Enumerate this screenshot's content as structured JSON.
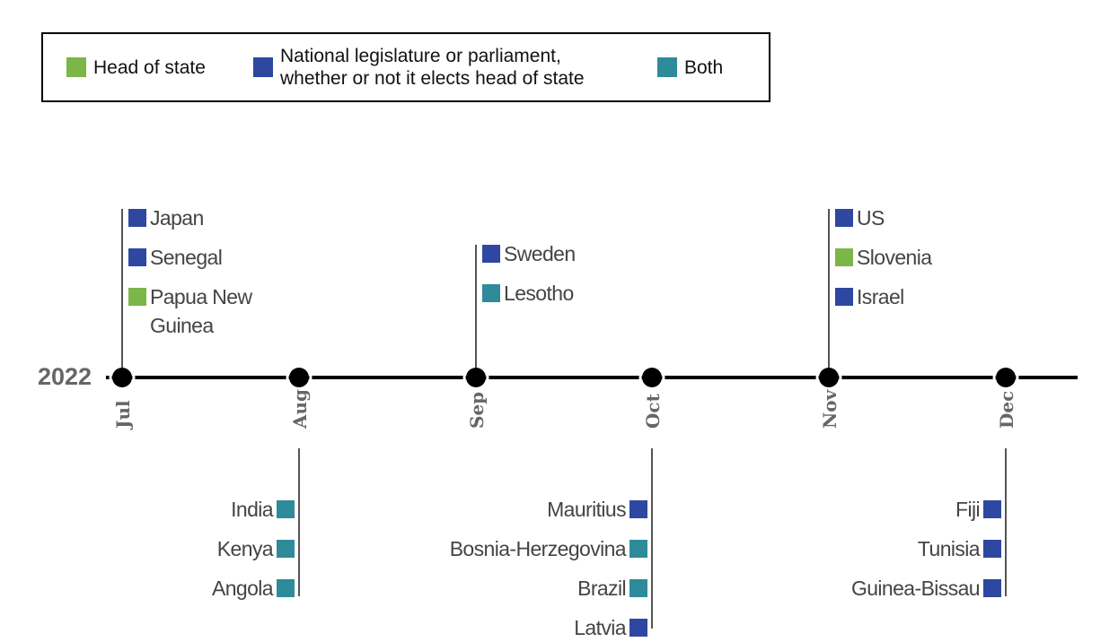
{
  "legend": [
    {
      "label": "Head of state",
      "color": "#7ab648"
    },
    {
      "label": "National legislature or parliament,\nwhether or not it elects head of state",
      "color": "#2e47a0"
    },
    {
      "label": "Both",
      "color": "#2e8b9a"
    }
  ],
  "year": "2022",
  "months": [
    {
      "label": "Jul",
      "events": [
        {
          "name": "Japan",
          "color": "#2e47a0"
        },
        {
          "name": "Senegal",
          "color": "#2e47a0"
        },
        {
          "name": "Papua New Guinea",
          "color": "#7ab648"
        }
      ]
    },
    {
      "label": "Aug",
      "events": [
        {
          "name": "India",
          "color": "#2e8b9a"
        },
        {
          "name": "Kenya",
          "color": "#2e8b9a"
        },
        {
          "name": "Angola",
          "color": "#2e8b9a"
        }
      ]
    },
    {
      "label": "Sep",
      "events": [
        {
          "name": "Sweden",
          "color": "#2e47a0"
        },
        {
          "name": "Lesotho",
          "color": "#2e8b9a"
        }
      ]
    },
    {
      "label": "Oct",
      "events": [
        {
          "name": "Mauritius",
          "color": "#2e47a0"
        },
        {
          "name": "Bosnia-Herzegovina",
          "color": "#2e8b9a"
        },
        {
          "name": "Brazil",
          "color": "#2e8b9a"
        },
        {
          "name": "Latvia",
          "color": "#2e47a0"
        }
      ]
    },
    {
      "label": "Nov",
      "events": [
        {
          "name": "US",
          "color": "#2e47a0"
        },
        {
          "name": "Slovenia",
          "color": "#7ab648"
        },
        {
          "name": "Israel",
          "color": "#2e47a0"
        }
      ]
    },
    {
      "label": "Dec",
      "events": [
        {
          "name": "Fiji",
          "color": "#2e47a0"
        },
        {
          "name": "Tunisia",
          "color": "#2e47a0"
        },
        {
          "name": "Guinea-Bissau",
          "color": "#2e47a0"
        }
      ]
    }
  ]
}
